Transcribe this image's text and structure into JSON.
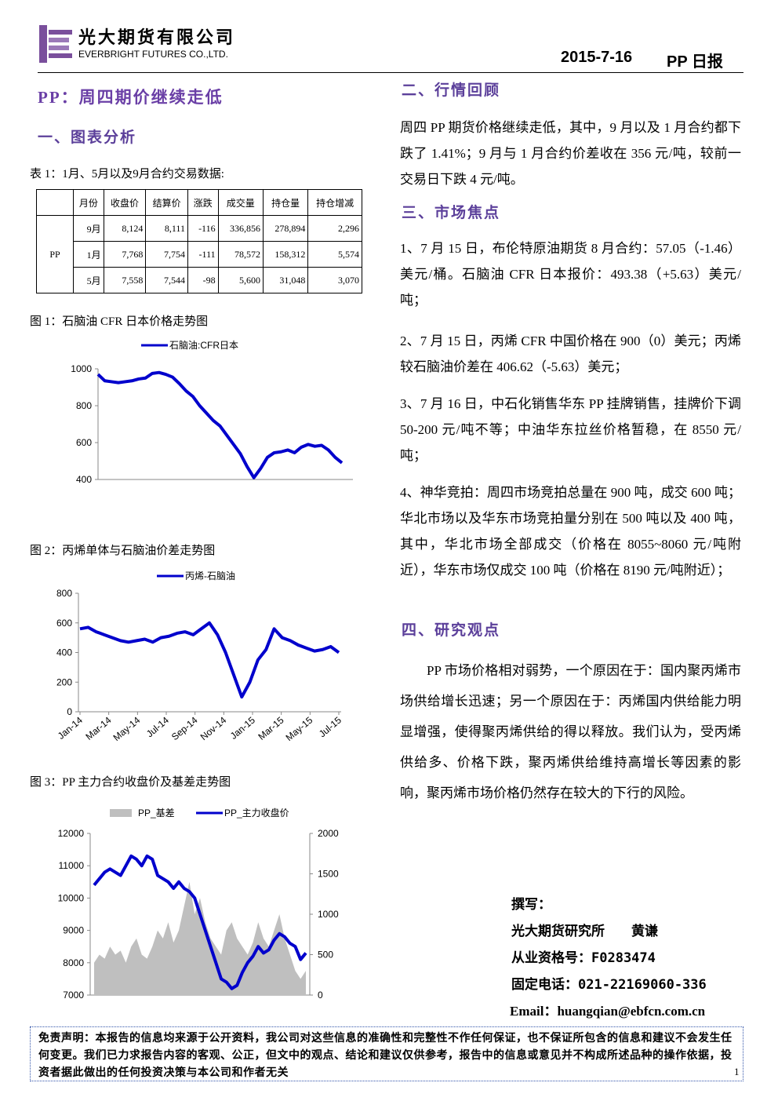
{
  "header": {
    "company_cn": "光大期货有限公司",
    "company_en": "EVERBRIGHT FUTURES CO.,LTD.",
    "date": "2015-7-16",
    "report": "PP 日报"
  },
  "title": "PP：周四期价继续走低",
  "left": {
    "section": "一、图表分析",
    "table_caption": "表 1：1月、5月以及9月合约交易数据:",
    "table": {
      "headers": [
        "月份",
        "收盘价",
        "结算价",
        "涨跌",
        "成交量",
        "持仓量",
        "持仓增减"
      ],
      "product": "PP",
      "rows": [
        [
          "9月",
          "8,124",
          "8,111",
          "-116",
          "336,856",
          "278,894",
          "2,296"
        ],
        [
          "1月",
          "7,768",
          "7,754",
          "-111",
          "78,572",
          "158,312",
          "5,574"
        ],
        [
          "5月",
          "7,558",
          "7,544",
          "-98",
          "5,600",
          "31,048",
          "3,070"
        ]
      ]
    },
    "figures": [
      {
        "caption": "图 1：石脑油 CFR 日本价格走势图",
        "chart": {
          "type": "line",
          "ylim": [
            400,
            1000
          ],
          "yticks": [
            400,
            600,
            800,
            1000
          ],
          "series": [
            {
              "name": "石脑油:CFR日本",
              "color": "#0000cc",
              "values": [
                970,
                935,
                930,
                925,
                930,
                935,
                945,
                950,
                975,
                980,
                970,
                955,
                920,
                880,
                850,
                800,
                760,
                720,
                690,
                640,
                590,
                540,
                470,
                410,
                460,
                520,
                545,
                550,
                560,
                545,
                575,
                590,
                580,
                585,
                560,
                520,
                490
              ]
            }
          ]
        }
      },
      {
        "caption": "图 2：丙烯单体与石脑油价差走势图",
        "chart": {
          "type": "line",
          "ylim": [
            0,
            800
          ],
          "yticks": [
            0,
            200,
            400,
            600,
            800
          ],
          "xticks": [
            "Jan-14",
            "Mar-14",
            "May-14",
            "Jul-14",
            "Sep-14",
            "Nov-14",
            "Jan-15",
            "Mar-15",
            "May-15",
            "Jul-15"
          ],
          "series": [
            {
              "name": "丙烯-石脑油",
              "color": "#0000cc",
              "values": [
                560,
                570,
                540,
                520,
                500,
                480,
                470,
                480,
                490,
                470,
                500,
                510,
                530,
                540,
                520,
                560,
                600,
                520,
                400,
                250,
                100,
                200,
                350,
                420,
                560,
                500,
                480,
                450,
                430,
                410,
                420,
                440,
                400
              ]
            }
          ]
        }
      },
      {
        "caption": "图 3：PP 主力合约收盘价及基差走势图",
        "chart": {
          "type": "combo",
          "ylim": [
            7000,
            12000
          ],
          "yticks": [
            7000,
            8000,
            9000,
            10000,
            11000,
            12000
          ],
          "y2lim": [
            0,
            2000
          ],
          "y2ticks": [
            0,
            500,
            1000,
            1500,
            2000
          ],
          "series": [
            {
              "name": "PP_基差",
              "color": "#bfbfbf",
              "axis": "y2",
              "kind": "area",
              "values": [
                400,
                500,
                450,
                600,
                500,
                550,
                400,
                600,
                700,
                500,
                450,
                600,
                800,
                700,
                900,
                650,
                800,
                1100,
                1400,
                1000,
                1200,
                900,
                700,
                600,
                500,
                800,
                900,
                700,
                600,
                500,
                650,
                900,
                700,
                600,
                800,
                1000,
                700,
                500,
                300,
                200,
                300
              ]
            },
            {
              "name": "PP_主力收盘价",
              "color": "#0000cc",
              "kind": "line",
              "values": [
                10400,
                10600,
                10800,
                10900,
                10800,
                10700,
                11000,
                11300,
                11200,
                11000,
                11300,
                11200,
                10700,
                10600,
                10500,
                10300,
                10500,
                10300,
                10200,
                10000,
                9500,
                9000,
                8500,
                8000,
                7500,
                7400,
                7200,
                7300,
                7700,
                8000,
                8200,
                8500,
                8300,
                8400,
                8700,
                8900,
                8800,
                8600,
                8500,
                8100,
                8300
              ]
            }
          ]
        }
      }
    ]
  },
  "right": {
    "sections": [
      {
        "heading": "二、行情回顾",
        "paragraphs": [
          "周四 PP 期货价格继续走低，其中，9 月以及 1 月合约都下跌了 1.41%；9 月与 1 月合约价差收在 356 元/吨，较前一交易日下跌 4 元/吨。"
        ]
      },
      {
        "heading": "三、市场焦点",
        "paragraphs": [
          "1、7 月 15 日，布伦特原油期货 8 月合约：57.05（-1.46）美元/桶。石脑油 CFR 日本报价：493.38（+5.63）美元/吨；",
          "2、7 月 15 日，丙烯 CFR 中国价格在 900（0）美元；丙烯较石脑油价差在 406.62（-5.63）美元；",
          "3、7 月 16 日，中石化销售华东 PP 挂牌销售，挂牌价下调 50-200 元/吨不等；中油华东拉丝价格暂稳，在 8550 元/吨；",
          "4、神华竞拍：周四市场竞拍总量在 900 吨，成交 600 吨；华北市场以及华东市场竞拍量分别在 500 吨以及 400 吨，其中，华北市场全部成交（价格在 8055~8060 元/吨附近），华东市场仅成交 100 吨（价格在 8190 元/吨附近）；"
        ]
      },
      {
        "heading": "四、研究观点",
        "paragraphs": [
          "PP 市场价格相对弱势，一个原因在于：国内聚丙烯市场供给增长迅速；另一个原因在于：丙烯国内供给能力明显增强，使得聚丙烯供给的得以释放。我们认为，受丙烯供给多、价格下跌，聚丙烯供给维持高增长等因素的影响，聚丙烯市场价格仍然存在较大的下行的风险。"
        ]
      }
    ],
    "author": [
      "撰写：",
      "光大期货研究所　　黄谦",
      "从业资格号：F0283474",
      "固定电话：021-22169060-336",
      "Email：huangqian@ebfcn.com.cn"
    ]
  },
  "footer": {
    "disclaimer": "免责声明：本报告的信息均来源于公开资料，我公司对这些信息的准确性和完整性不作任何保证，也不保证所包含的信息和建议不会发生任何变更。我们已力求报告内容的客观、公正，但文中的观点、结论和建议仅供参考，报告中的信息或意见并不构成所述品种的操作依据，投资者据此做出的任何投资决策与本公司和作者无关",
    "page": "1"
  }
}
